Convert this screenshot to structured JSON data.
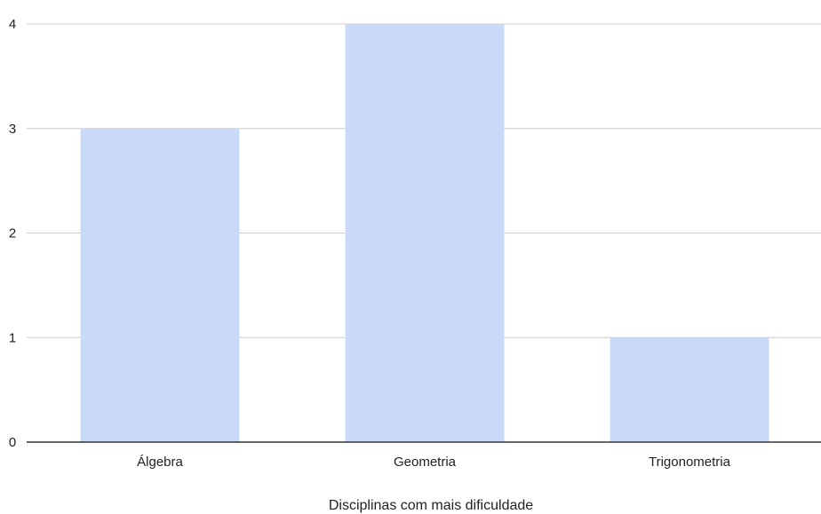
{
  "chart_data": {
    "type": "bar",
    "title": "",
    "xlabel": "Disciplinas com mais dificuldade",
    "ylabel": "",
    "categories": [
      "Álgebra",
      "Geometria",
      "Trigonometria"
    ],
    "values": [
      3,
      4,
      1
    ],
    "ylim": [
      0,
      4
    ],
    "yticks": [
      0,
      1,
      2,
      3,
      4
    ],
    "grid": true,
    "legend": "none",
    "colors": {
      "bar": "#c9daf8",
      "gridline": "#cccccc",
      "baseline": "#333333",
      "text": "#222222"
    }
  }
}
